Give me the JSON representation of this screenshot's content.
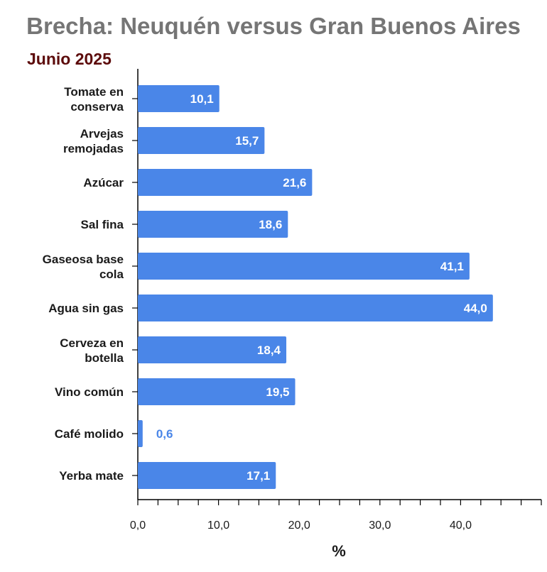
{
  "title": "Brecha: Neuquén versus Gran Buenos Aires",
  "subtitle": "Junio 2025",
  "colors": {
    "bar": "#4a86e8",
    "title": "#757575",
    "subtitle": "#5c0b0b",
    "axis": "#000000"
  },
  "chart_data": {
    "type": "bar",
    "orientation": "horizontal",
    "categories": [
      [
        "Tomate en",
        "conserva"
      ],
      [
        "Arvejas",
        "remojadas"
      ],
      [
        "Azúcar"
      ],
      [
        "Sal fina"
      ],
      [
        "Gaseosa base",
        "cola"
      ],
      [
        "Agua sin gas"
      ],
      [
        "Cerveza en",
        "botella"
      ],
      [
        "Vino común"
      ],
      [
        "Café molido"
      ],
      [
        "Yerba mate"
      ]
    ],
    "values": [
      10.1,
      15.7,
      21.6,
      18.6,
      41.1,
      44.0,
      18.4,
      19.5,
      0.6,
      17.1
    ],
    "value_labels": [
      "10,1",
      "15,7",
      "21,6",
      "18,6",
      "41,1",
      "44,0",
      "18,4",
      "19,5",
      "0,6",
      "17,1"
    ],
    "xlim": [
      0,
      50
    ],
    "x_ticks": [
      {
        "value": 0,
        "label": "0,0"
      },
      {
        "value": 10,
        "label": "10,0"
      },
      {
        "value": 20,
        "label": "20,0"
      },
      {
        "value": 30,
        "label": "30,0"
      },
      {
        "value": 40,
        "label": "40,0"
      }
    ],
    "xlabel": "%",
    "ylabel": "",
    "grid": false,
    "legend": "none"
  }
}
